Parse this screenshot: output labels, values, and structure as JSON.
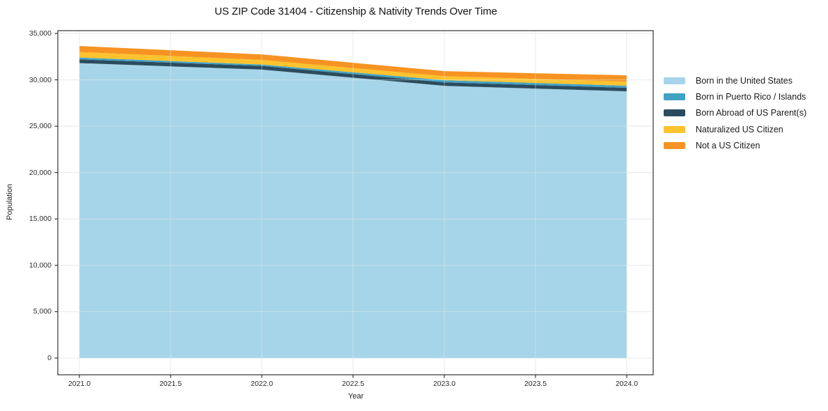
{
  "title": "US ZIP Code 31404 - Citizenship & Nativity Trends Over Time",
  "chart_data": {
    "type": "area",
    "stacked": true,
    "title": "US ZIP Code 31404 - Citizenship & Nativity Trends Over Time",
    "xlabel": "Year",
    "ylabel": "Population",
    "x": [
      2021,
      2022,
      2023,
      2024
    ],
    "x_tick_labels": [
      "2021.0",
      "2021.5",
      "2022.0",
      "2022.5",
      "2023.0",
      "2023.5",
      "2024.0"
    ],
    "x_tick_values": [
      2021,
      2021.5,
      2022,
      2022.5,
      2023,
      2023.5,
      2024
    ],
    "y_tick_labels": [
      "0",
      "5,000",
      "10,000",
      "15,000",
      "20,000",
      "25,000",
      "30,000",
      "35,000"
    ],
    "y_tick_values": [
      0,
      5000,
      10000,
      15000,
      20000,
      25000,
      30000,
      35000
    ],
    "ylim": [
      0,
      35000
    ],
    "grid": true,
    "legend_position": "right-outside",
    "series": [
      {
        "name": "Born in the United States",
        "color": "#a6d4e8",
        "stack_order": 0,
        "values": [
          31800,
          31100,
          29350,
          28760
        ]
      },
      {
        "name": "Born in Puerto Rico / Islands",
        "color": "#41a2c4",
        "stack_order": 2,
        "values": [
          200,
          150,
          230,
          220
        ]
      },
      {
        "name": "Born Abroad of US Parent(s)",
        "color": "#2b4c5e",
        "stack_order": 1,
        "values": [
          400,
          400,
          380,
          380
        ]
      },
      {
        "name": "Naturalized US Citizen",
        "color": "#fdc32e",
        "stack_order": 3,
        "values": [
          600,
          500,
          440,
          440
        ]
      },
      {
        "name": "Not a US Citizen",
        "color": "#f79322",
        "stack_order": 4,
        "values": [
          650,
          590,
          540,
          690
        ]
      }
    ],
    "colors": {
      "spine": "#333333",
      "grid": "#e7e7ea",
      "background": "#ffffff"
    }
  }
}
